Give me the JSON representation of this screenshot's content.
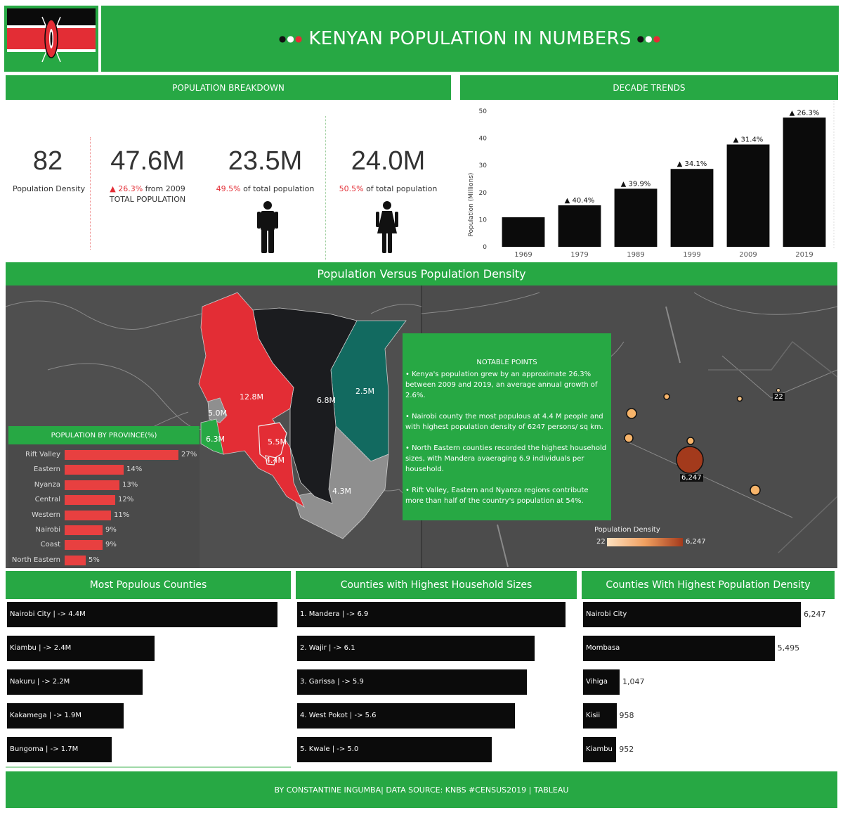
{
  "header": {
    "title": "KENYAN POPULATION IN NUMBERS"
  },
  "sections": {
    "breakdown": "POPULATION BREAKDOWN",
    "trends": "DECADE TRENDS",
    "maps": "Population Versus Population Density",
    "populous": "Most Populous Counties",
    "household": "Counties with Highest Household Sizes",
    "density": "Counties With Highest Population Density"
  },
  "kpis": {
    "density": {
      "value": "82",
      "label": "Population Density"
    },
    "total": {
      "value": "47.6M",
      "growth": "▲ 26.3%",
      "growth_suffix": " from 2009",
      "label": "TOTAL POPULATION"
    },
    "male": {
      "value": "23.5M",
      "pct": "49.5%",
      "pct_suffix": " of total population"
    },
    "female": {
      "value": "24.0M",
      "pct": "50.5%",
      "pct_suffix": " of total population"
    }
  },
  "notable": {
    "title": "NOTABLE POINTS",
    "points": [
      "• Kenya's population grew by an approximate 26.3% between 2009 and 2019, an average annual growth of 2.6%.",
      "• Nairobi county the most populous at 4.4 M people and with highest population density of 6247 persons/ sq km.",
      "• North Eastern counties recorded the highest household sizes, with Mandera avaeraging 6.9 individuals per household.",
      "• Rift Valley, Eastern and Nyanza regions contribute more than half of the country's population at 54%."
    ]
  },
  "map_labels": {
    "rift": "12.8M",
    "eastern": "6.8M",
    "north_eastern": "2.5M",
    "western": "5.0M",
    "nyanza": "6.3M",
    "central": "5.5M",
    "nairobi": "4.4M",
    "coast": "4.3M"
  },
  "density_legend": {
    "title": "Population Density",
    "min": "22",
    "max": "6,247",
    "max_label": "6,247",
    "min_label": "22"
  },
  "colors": {
    "green": "#27a844",
    "red": "#e32d35",
    "black": "#0b0b0b",
    "teal": "#126a60"
  },
  "footer": "BY CONSTANTINE INGUMBA| DATA SOURCE: KNBS #CENSUS2019 | TABLEAU",
  "chart_data": [
    {
      "type": "bar",
      "title": "DECADE TRENDS",
      "ylabel": "Population (Millions)",
      "categories": [
        "1969",
        "1979",
        "1989",
        "1999",
        "2009",
        "2019"
      ],
      "values": [
        10.9,
        15.3,
        21.4,
        28.7,
        37.7,
        47.6
      ],
      "growth_labels": [
        "",
        "▲ 40.4%",
        "▲ 39.9%",
        "▲ 34.1%",
        "▲ 31.4%",
        "▲ 26.3%"
      ],
      "ylim": [
        0,
        50
      ],
      "yticks": [
        "0",
        "10",
        "20",
        "30",
        "40",
        "50"
      ]
    },
    {
      "type": "bar",
      "title": "POPULATION BY PROVINCE(%)",
      "categories": [
        "Rift Valley",
        "Eastern",
        "Nyanza",
        "Central",
        "Western",
        "Nairobi",
        "Coast",
        "North Eastern"
      ],
      "values": [
        27,
        14,
        13,
        12,
        11,
        9,
        9,
        5
      ],
      "labels": [
        "27%",
        "14%",
        "13%",
        "12%",
        "11%",
        "9%",
        "9%",
        "5%"
      ]
    },
    {
      "type": "bar",
      "title": "Most Populous Counties",
      "categories": [
        "Nairobi City | -> 4.4M",
        "Kiambu | -> 2.4M",
        "Nakuru | -> 2.2M",
        "Kakamega | -> 1.9M",
        "Bungoma | -> 1.7M"
      ],
      "values": [
        4.4,
        2.4,
        2.2,
        1.9,
        1.7
      ]
    },
    {
      "type": "bar",
      "title": "Counties with Highest Household Sizes",
      "categories": [
        "1. Mandera  | -> 6.9",
        "2. Wajir  | -> 6.1",
        "3. Garissa  | -> 5.9",
        "4. West Pokot  | -> 5.6",
        "5. Kwale  | -> 5.0"
      ],
      "values": [
        6.9,
        6.1,
        5.9,
        5.6,
        5.0
      ]
    },
    {
      "type": "bar",
      "title": "Counties With Highest Population Density",
      "categories": [
        "Nairobi City",
        "Mombasa",
        "Vihiga",
        "Kisii",
        "Kiambu"
      ],
      "values": [
        6247,
        5495,
        1047,
        958,
        952
      ],
      "labels": [
        "6,247",
        "5,495",
        "1,047",
        "958",
        "952"
      ]
    }
  ]
}
